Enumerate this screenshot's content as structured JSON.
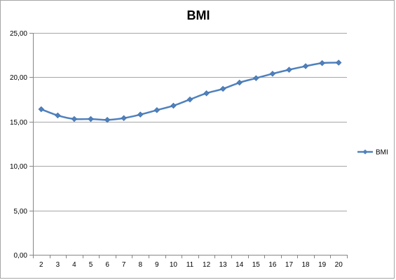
{
  "chart_data": {
    "type": "line",
    "title": "BMI",
    "xlabel": "",
    "ylabel": "",
    "x": [
      2,
      3,
      4,
      5,
      6,
      7,
      8,
      9,
      10,
      11,
      12,
      13,
      14,
      15,
      16,
      17,
      18,
      19,
      20
    ],
    "x_tick_labels": [
      "2",
      "3",
      "4",
      "5",
      "6",
      "7",
      "8",
      "9",
      "10",
      "11",
      "12",
      "13",
      "14",
      "15",
      "16",
      "17",
      "18",
      "19",
      "20"
    ],
    "series": [
      {
        "name": "BMI",
        "values": [
          16.4,
          15.7,
          15.3,
          15.3,
          15.2,
          15.4,
          15.8,
          16.3,
          16.8,
          17.5,
          18.2,
          18.7,
          19.4,
          19.9,
          20.4,
          20.85,
          21.25,
          21.6,
          21.65
        ],
        "color": "#4f81bd",
        "marker": "diamond"
      }
    ],
    "ylim": [
      0,
      25
    ],
    "y_ticks": [
      0,
      5,
      10,
      15,
      20,
      25
    ],
    "y_tick_labels": [
      "0,00",
      "5,00",
      "10,00",
      "15,00",
      "20,00",
      "25,00"
    ],
    "grid": "horizontal",
    "legend_position": "right"
  }
}
